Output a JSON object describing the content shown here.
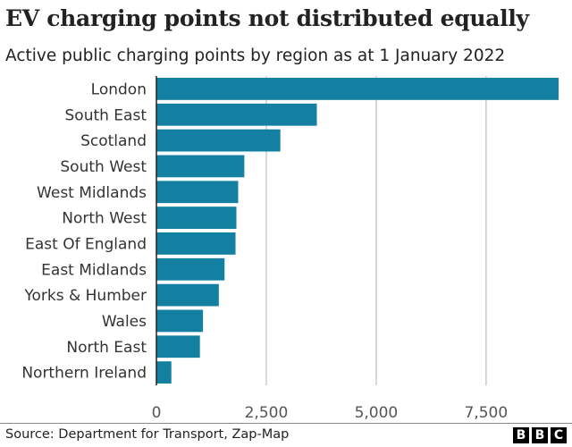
{
  "title": "EV charging points not distributed equally",
  "subtitle": "Active public charging points by region as at 1 January 2022",
  "source": "Source: Department for Transport, Zap-Map",
  "logo": [
    "B",
    "B",
    "C"
  ],
  "colors": {
    "bar": "#1380a1",
    "grid": "#cccccc",
    "axis": "#222222"
  },
  "chart_data": {
    "type": "bar",
    "orientation": "horizontal",
    "categories": [
      "London",
      "South East",
      "Scotland",
      "South West",
      "West Midlands",
      "North West",
      "East Of England",
      "East Midlands",
      "Yorks & Humber",
      "Wales",
      "North East",
      "Northern Ireland"
    ],
    "values": [
      9150,
      3650,
      2820,
      2000,
      1860,
      1820,
      1800,
      1550,
      1420,
      1060,
      990,
      340
    ],
    "xlim": [
      0,
      9150
    ],
    "xticks": [
      0,
      2500,
      5000,
      7500
    ],
    "xtick_labels": [
      "0",
      "2,500",
      "5,000",
      "7,500"
    ],
    "grid": true
  }
}
